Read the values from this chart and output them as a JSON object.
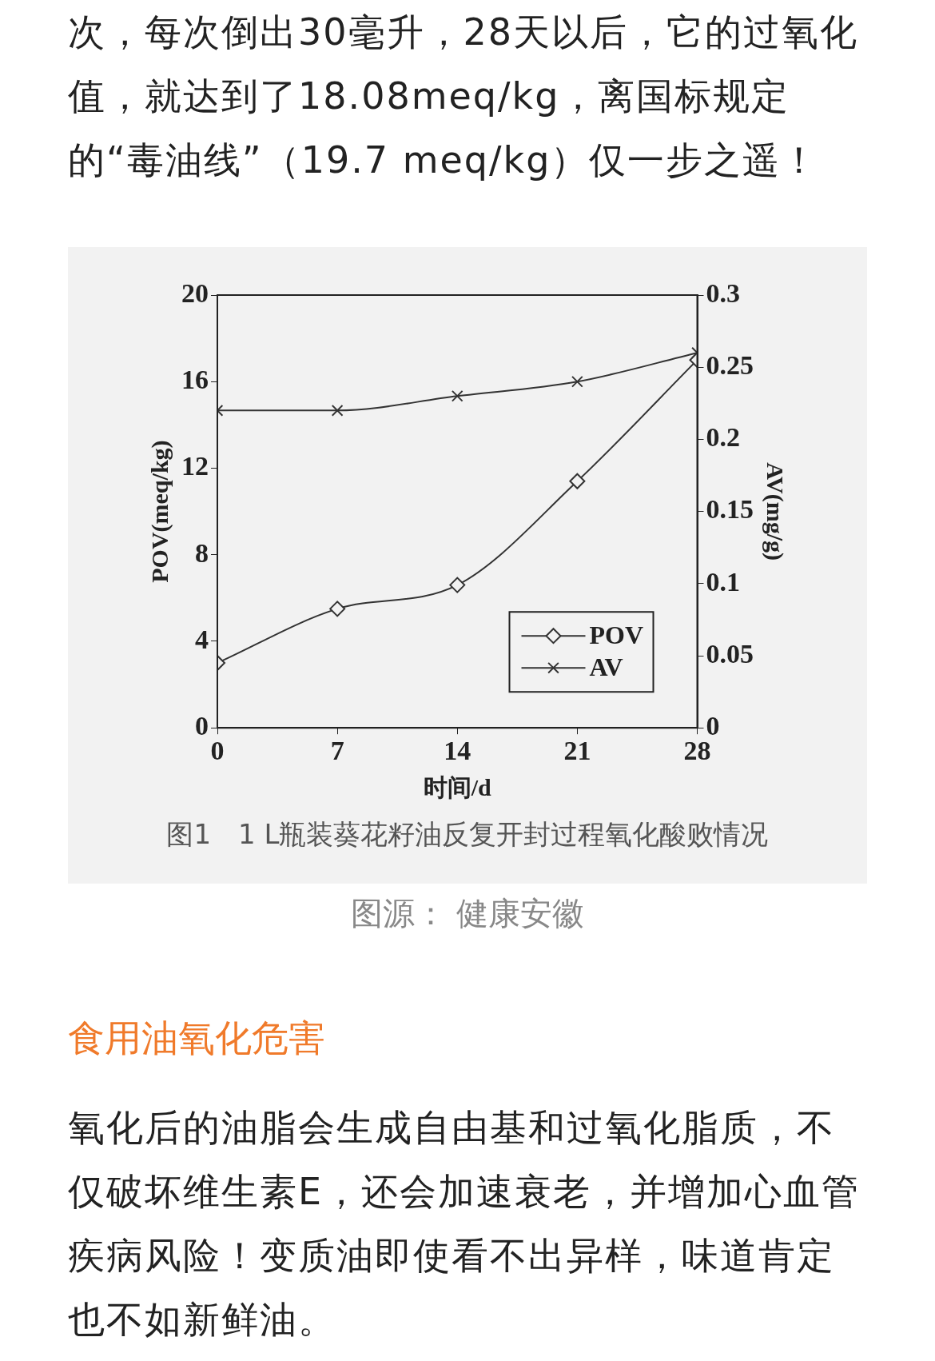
{
  "chart_data": {
    "type": "line",
    "xlabel": "时间/d",
    "ylabel": "POV(meq/kg)",
    "y2label": "AV(mg/g)",
    "annotations": [
      "次，每次倒出30毫升，28天以后，它的过氧化值，就达到了18.08meq/kg，离国标规定的“毒油线”（19.7 meq/kg）仅一步之遥！",
      "图1　1 L瓶装葵花籽油反复开封过程氧化酸败情况",
      "图源：  健康安徽",
      "食用油氧化危害",
      "氧化后的油脂会生成自由基和过氧化脂质，不仅破坏维生素E，还会加速衰老，并增加心血管疾病风险！变质油即使看不出异样，味道肯定也不如新鲜油。"
    ],
    "x": [
      0,
      7,
      14,
      21,
      28
    ],
    "series": [
      {
        "name": "POV",
        "color": "#333333",
        "marker": "diamond",
        "values": [
          3.0,
          5.5,
          6.6,
          11.4,
          17.0
        ]
      },
      {
        "name": "AV",
        "color": "#333333",
        "marker": "cross",
        "axis": "y2",
        "values": [
          0.22,
          0.22,
          0.23,
          0.24,
          0.26
        ]
      }
    ],
    "xlim": [
      0,
      28
    ],
    "xticks": [
      0,
      7,
      14,
      21,
      28
    ],
    "ylim": [
      0,
      20
    ],
    "yticks": [
      0,
      4,
      8,
      12,
      16,
      20
    ],
    "y2lim": [
      0,
      0.3
    ],
    "y2ticks": [
      0,
      0.05,
      0.1,
      0.15,
      0.2,
      0.25,
      0.3
    ],
    "grid": false,
    "legend": "bottom right",
    "line_style": "solid"
  }
}
